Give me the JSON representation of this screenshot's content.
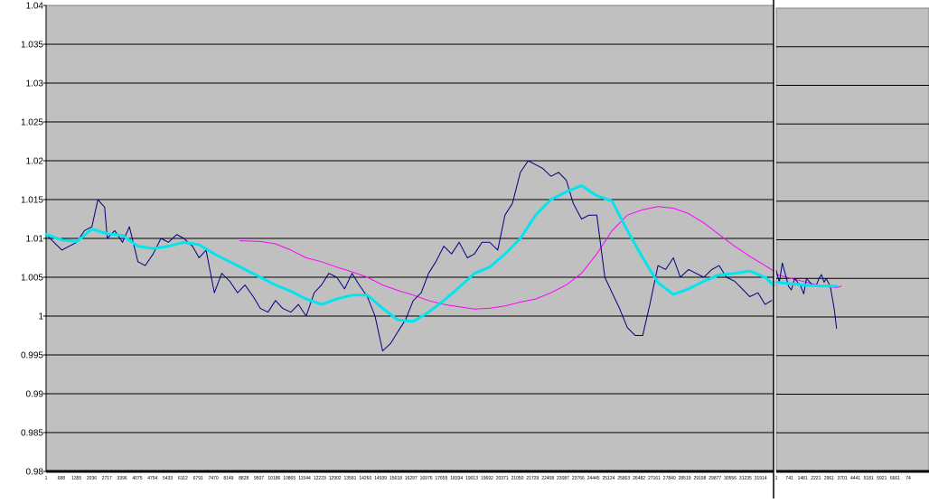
{
  "chart_data": [
    {
      "type": "line",
      "title": "",
      "xlabel": "",
      "ylabel": "",
      "ylim": [
        0.98,
        1.04
      ],
      "y_ticks": [
        "1.04",
        "1.035",
        "1.03",
        "1.025",
        "1.02",
        "1.015",
        "1.01",
        "1.005",
        "1",
        "0.995",
        "0.99",
        "0.985",
        "0.98"
      ],
      "y_tick_values": [
        1.04,
        1.035,
        1.03,
        1.025,
        1.02,
        1.015,
        1.01,
        1.005,
        1.0,
        0.995,
        0.99,
        0.985,
        0.98
      ],
      "x_tick_labels": [
        "1",
        "688",
        "1355",
        "2036",
        "2717",
        "3396",
        "4075",
        "4754",
        "5433",
        "6112",
        "6791",
        "7470",
        "8149",
        "8828",
        "9507",
        "10186",
        "10865",
        "11544",
        "12223",
        "12902",
        "13581",
        "14260",
        "14939",
        "15618",
        "16297",
        "16976",
        "17655",
        "18334",
        "19013",
        "19692",
        "20371",
        "21050",
        "21729",
        "22408",
        "23087",
        "23766",
        "24445",
        "25124",
        "25803",
        "26482",
        "27161",
        "27840",
        "28519",
        "29198",
        "29877",
        "30556",
        "31235",
        "31914"
      ],
      "xlim": [
        1,
        32290
      ],
      "grid": true,
      "plot_background": "#c0c0c0",
      "series": [
        {
          "color": "#000080",
          "points": [
            [
              1,
              1.0105
            ],
            [
              700,
              1.0085
            ],
            [
              1355,
              1.0095
            ],
            [
              1700,
              1.011
            ],
            [
              2036,
              1.0115
            ],
            [
              2300,
              1.015
            ],
            [
              2600,
              1.014
            ],
            [
              2717,
              1.01
            ],
            [
              3050,
              1.011
            ],
            [
              3396,
              1.0095
            ],
            [
              3700,
              1.0115
            ],
            [
              4075,
              1.007
            ],
            [
              4400,
              1.0065
            ],
            [
              4754,
              1.008
            ],
            [
              5100,
              1.01
            ],
            [
              5433,
              1.0095
            ],
            [
              5800,
              1.0105
            ],
            [
              6112,
              1.01
            ],
            [
              6500,
              1.009
            ],
            [
              6791,
              1.0075
            ],
            [
              7100,
              1.0085
            ],
            [
              7470,
              1.003
            ],
            [
              7800,
              1.0055
            ],
            [
              8149,
              1.0045
            ],
            [
              8500,
              1.003
            ],
            [
              8828,
              1.004
            ],
            [
              9200,
              1.0025
            ],
            [
              9507,
              1.001
            ],
            [
              9850,
              1.0005
            ],
            [
              10186,
              1.002
            ],
            [
              10500,
              1.001
            ],
            [
              10865,
              1.0005
            ],
            [
              11200,
              1.0015
            ],
            [
              11544,
              1.0
            ],
            [
              11900,
              1.003
            ],
            [
              12223,
              1.004
            ],
            [
              12550,
              1.0055
            ],
            [
              12902,
              1.005
            ],
            [
              13250,
              1.0035
            ],
            [
              13581,
              1.0055
            ],
            [
              13900,
              1.004
            ],
            [
              14260,
              1.0025
            ],
            [
              14600,
              1.0
            ],
            [
              14939,
              0.9955
            ],
            [
              15300,
              0.9965
            ],
            [
              15618,
              0.998
            ],
            [
              15950,
              0.9995
            ],
            [
              16297,
              1.002
            ],
            [
              16650,
              1.003
            ],
            [
              16976,
              1.0055
            ],
            [
              17300,
              1.007
            ],
            [
              17655,
              1.009
            ],
            [
              18000,
              1.008
            ],
            [
              18334,
              1.0095
            ],
            [
              18700,
              1.0075
            ],
            [
              19013,
              1.008
            ],
            [
              19350,
              1.0095
            ],
            [
              19692,
              1.0095
            ],
            [
              20050,
              1.0085
            ],
            [
              20371,
              1.013
            ],
            [
              20700,
              1.0145
            ],
            [
              21050,
              1.0185
            ],
            [
              21400,
              1.02
            ],
            [
              21729,
              1.0195
            ],
            [
              22050,
              1.019
            ],
            [
              22408,
              1.018
            ],
            [
              22750,
              1.0185
            ],
            [
              23087,
              1.0175
            ],
            [
              23400,
              1.0145
            ],
            [
              23766,
              1.0125
            ],
            [
              24100,
              1.013
            ],
            [
              24445,
              1.013
            ],
            [
              24800,
              1.005
            ],
            [
              25124,
              1.003
            ],
            [
              25450,
              1.001
            ],
            [
              25803,
              0.9985
            ],
            [
              26150,
              0.9975
            ],
            [
              26482,
              0.9975
            ],
            [
              26800,
              1.0015
            ],
            [
              27161,
              1.0065
            ],
            [
              27500,
              1.006
            ],
            [
              27840,
              1.0075
            ],
            [
              28150,
              1.005
            ],
            [
              28519,
              1.006
            ],
            [
              28850,
              1.0055
            ],
            [
              29198,
              1.005
            ],
            [
              29550,
              1.006
            ],
            [
              29877,
              1.0065
            ],
            [
              30200,
              1.005
            ],
            [
              30556,
              1.0045
            ],
            [
              30900,
              1.0035
            ],
            [
              31235,
              1.0025
            ],
            [
              31600,
              1.003
            ],
            [
              31914,
              1.0015
            ],
            [
              32200,
              1.002
            ]
          ]
        },
        {
          "color": "#00e5ee",
          "points": [
            [
              1,
              1.0105
            ],
            [
              700,
              1.0098
            ],
            [
              1355,
              1.0096
            ],
            [
              2036,
              1.0112
            ],
            [
              2717,
              1.0106
            ],
            [
              3396,
              1.0104
            ],
            [
              4075,
              1.009
            ],
            [
              4754,
              1.0087
            ],
            [
              5433,
              1.009
            ],
            [
              6112,
              1.0095
            ],
            [
              6791,
              1.0092
            ],
            [
              7470,
              1.008
            ],
            [
              8149,
              1.007
            ],
            [
              8828,
              1.006
            ],
            [
              9507,
              1.005
            ],
            [
              10186,
              1.004
            ],
            [
              10865,
              1.0032
            ],
            [
              11544,
              1.0022
            ],
            [
              12223,
              1.0015
            ],
            [
              12902,
              1.0022
            ],
            [
              13581,
              1.0027
            ],
            [
              14260,
              1.0027
            ],
            [
              14939,
              1.001
            ],
            [
              15618,
              0.9995
            ],
            [
              16297,
              0.9993
            ],
            [
              16976,
              1.0005
            ],
            [
              17655,
              1.002
            ],
            [
              18334,
              1.0037
            ],
            [
              19013,
              1.0055
            ],
            [
              19692,
              1.0063
            ],
            [
              20371,
              1.008
            ],
            [
              21050,
              1.01
            ],
            [
              21729,
              1.013
            ],
            [
              22408,
              1.015
            ],
            [
              23087,
              1.016
            ],
            [
              23766,
              1.0168
            ],
            [
              24445,
              1.0155
            ],
            [
              25124,
              1.0148
            ],
            [
              25803,
              1.011
            ],
            [
              26482,
              1.0075
            ],
            [
              27161,
              1.0043
            ],
            [
              27840,
              1.0028
            ],
            [
              28519,
              1.0035
            ],
            [
              29198,
              1.0045
            ],
            [
              29877,
              1.0053
            ],
            [
              30556,
              1.0055
            ],
            [
              31235,
              1.0058
            ],
            [
              31914,
              1.005
            ],
            [
              32290,
              1.004
            ]
          ]
        },
        {
          "color": "#ff00ff",
          "points": [
            [
              8600,
              1.0097
            ],
            [
              9507,
              1.0096
            ],
            [
              10186,
              1.0093
            ],
            [
              10865,
              1.0085
            ],
            [
              11544,
              1.0075
            ],
            [
              12223,
              1.007
            ],
            [
              12902,
              1.0063
            ],
            [
              13581,
              1.0057
            ],
            [
              14260,
              1.005
            ],
            [
              14939,
              1.004
            ],
            [
              15618,
              1.0033
            ],
            [
              16297,
              1.0027
            ],
            [
              16976,
              1.002
            ],
            [
              17655,
              1.0015
            ],
            [
              18334,
              1.0012
            ],
            [
              19013,
              1.0009
            ],
            [
              19692,
              1.001
            ],
            [
              20371,
              1.0013
            ],
            [
              21050,
              1.0018
            ],
            [
              21729,
              1.0022
            ],
            [
              22408,
              1.003
            ],
            [
              23087,
              1.004
            ],
            [
              23766,
              1.0055
            ],
            [
              24445,
              1.008
            ],
            [
              25124,
              1.011
            ],
            [
              25803,
              1.013
            ],
            [
              26482,
              1.0137
            ],
            [
              27161,
              1.0141
            ],
            [
              27840,
              1.0139
            ],
            [
              28519,
              1.0132
            ],
            [
              29198,
              1.012
            ],
            [
              29877,
              1.0105
            ],
            [
              30556,
              1.009
            ],
            [
              31235,
              1.0077
            ],
            [
              31914,
              1.0065
            ],
            [
              32290,
              1.0058
            ]
          ]
        }
      ]
    },
    {
      "type": "line",
      "title": "",
      "xlabel": "",
      "ylabel": "",
      "ylim": [
        0.98,
        1.04
      ],
      "x_tick_labels": [
        "1",
        "741",
        "1481",
        "2221",
        "2961",
        "3701",
        "4441",
        "5181",
        "5921",
        "6661",
        "74"
      ],
      "xlim": [
        1,
        7500
      ],
      "grid": true,
      "plot_background": "#c0c0c0",
      "series": [
        {
          "color": "#000080",
          "points": [
            [
              1,
              1.006
            ],
            [
              150,
              1.0045
            ],
            [
              300,
              1.007
            ],
            [
              450,
              1.0055
            ],
            [
              600,
              1.004
            ],
            [
              741,
              1.0035
            ],
            [
              900,
              1.005
            ],
            [
              1050,
              1.0045
            ],
            [
              1200,
              1.004
            ],
            [
              1350,
              1.003
            ],
            [
              1481,
              1.005
            ],
            [
              1650,
              1.0045
            ],
            [
              1800,
              1.004
            ],
            [
              1950,
              1.004
            ],
            [
              2100,
              1.005
            ],
            [
              2221,
              1.0055
            ],
            [
              2350,
              1.0045
            ],
            [
              2450,
              1.005
            ],
            [
              2550,
              1.0045
            ],
            [
              2650,
              1.004
            ],
            [
              2750,
              1.0025
            ],
            [
              2850,
              1.001
            ],
            [
              2961,
              0.9985
            ]
          ]
        },
        {
          "color": "#00e5ee",
          "points": [
            [
              1,
              1.0045
            ],
            [
              741,
              1.0043
            ],
            [
              1481,
              1.0041
            ],
            [
              2221,
              1.004
            ],
            [
              2961,
              1.004
            ]
          ]
        },
        {
          "color": "#ff00ff",
          "points": [
            [
              1,
              1.0055
            ],
            [
              741,
              1.005
            ],
            [
              1481,
              1.0045
            ],
            [
              2221,
              1.004
            ],
            [
              2961,
              1.0038
            ],
            [
              3200,
              1.004
            ]
          ]
        }
      ]
    }
  ]
}
